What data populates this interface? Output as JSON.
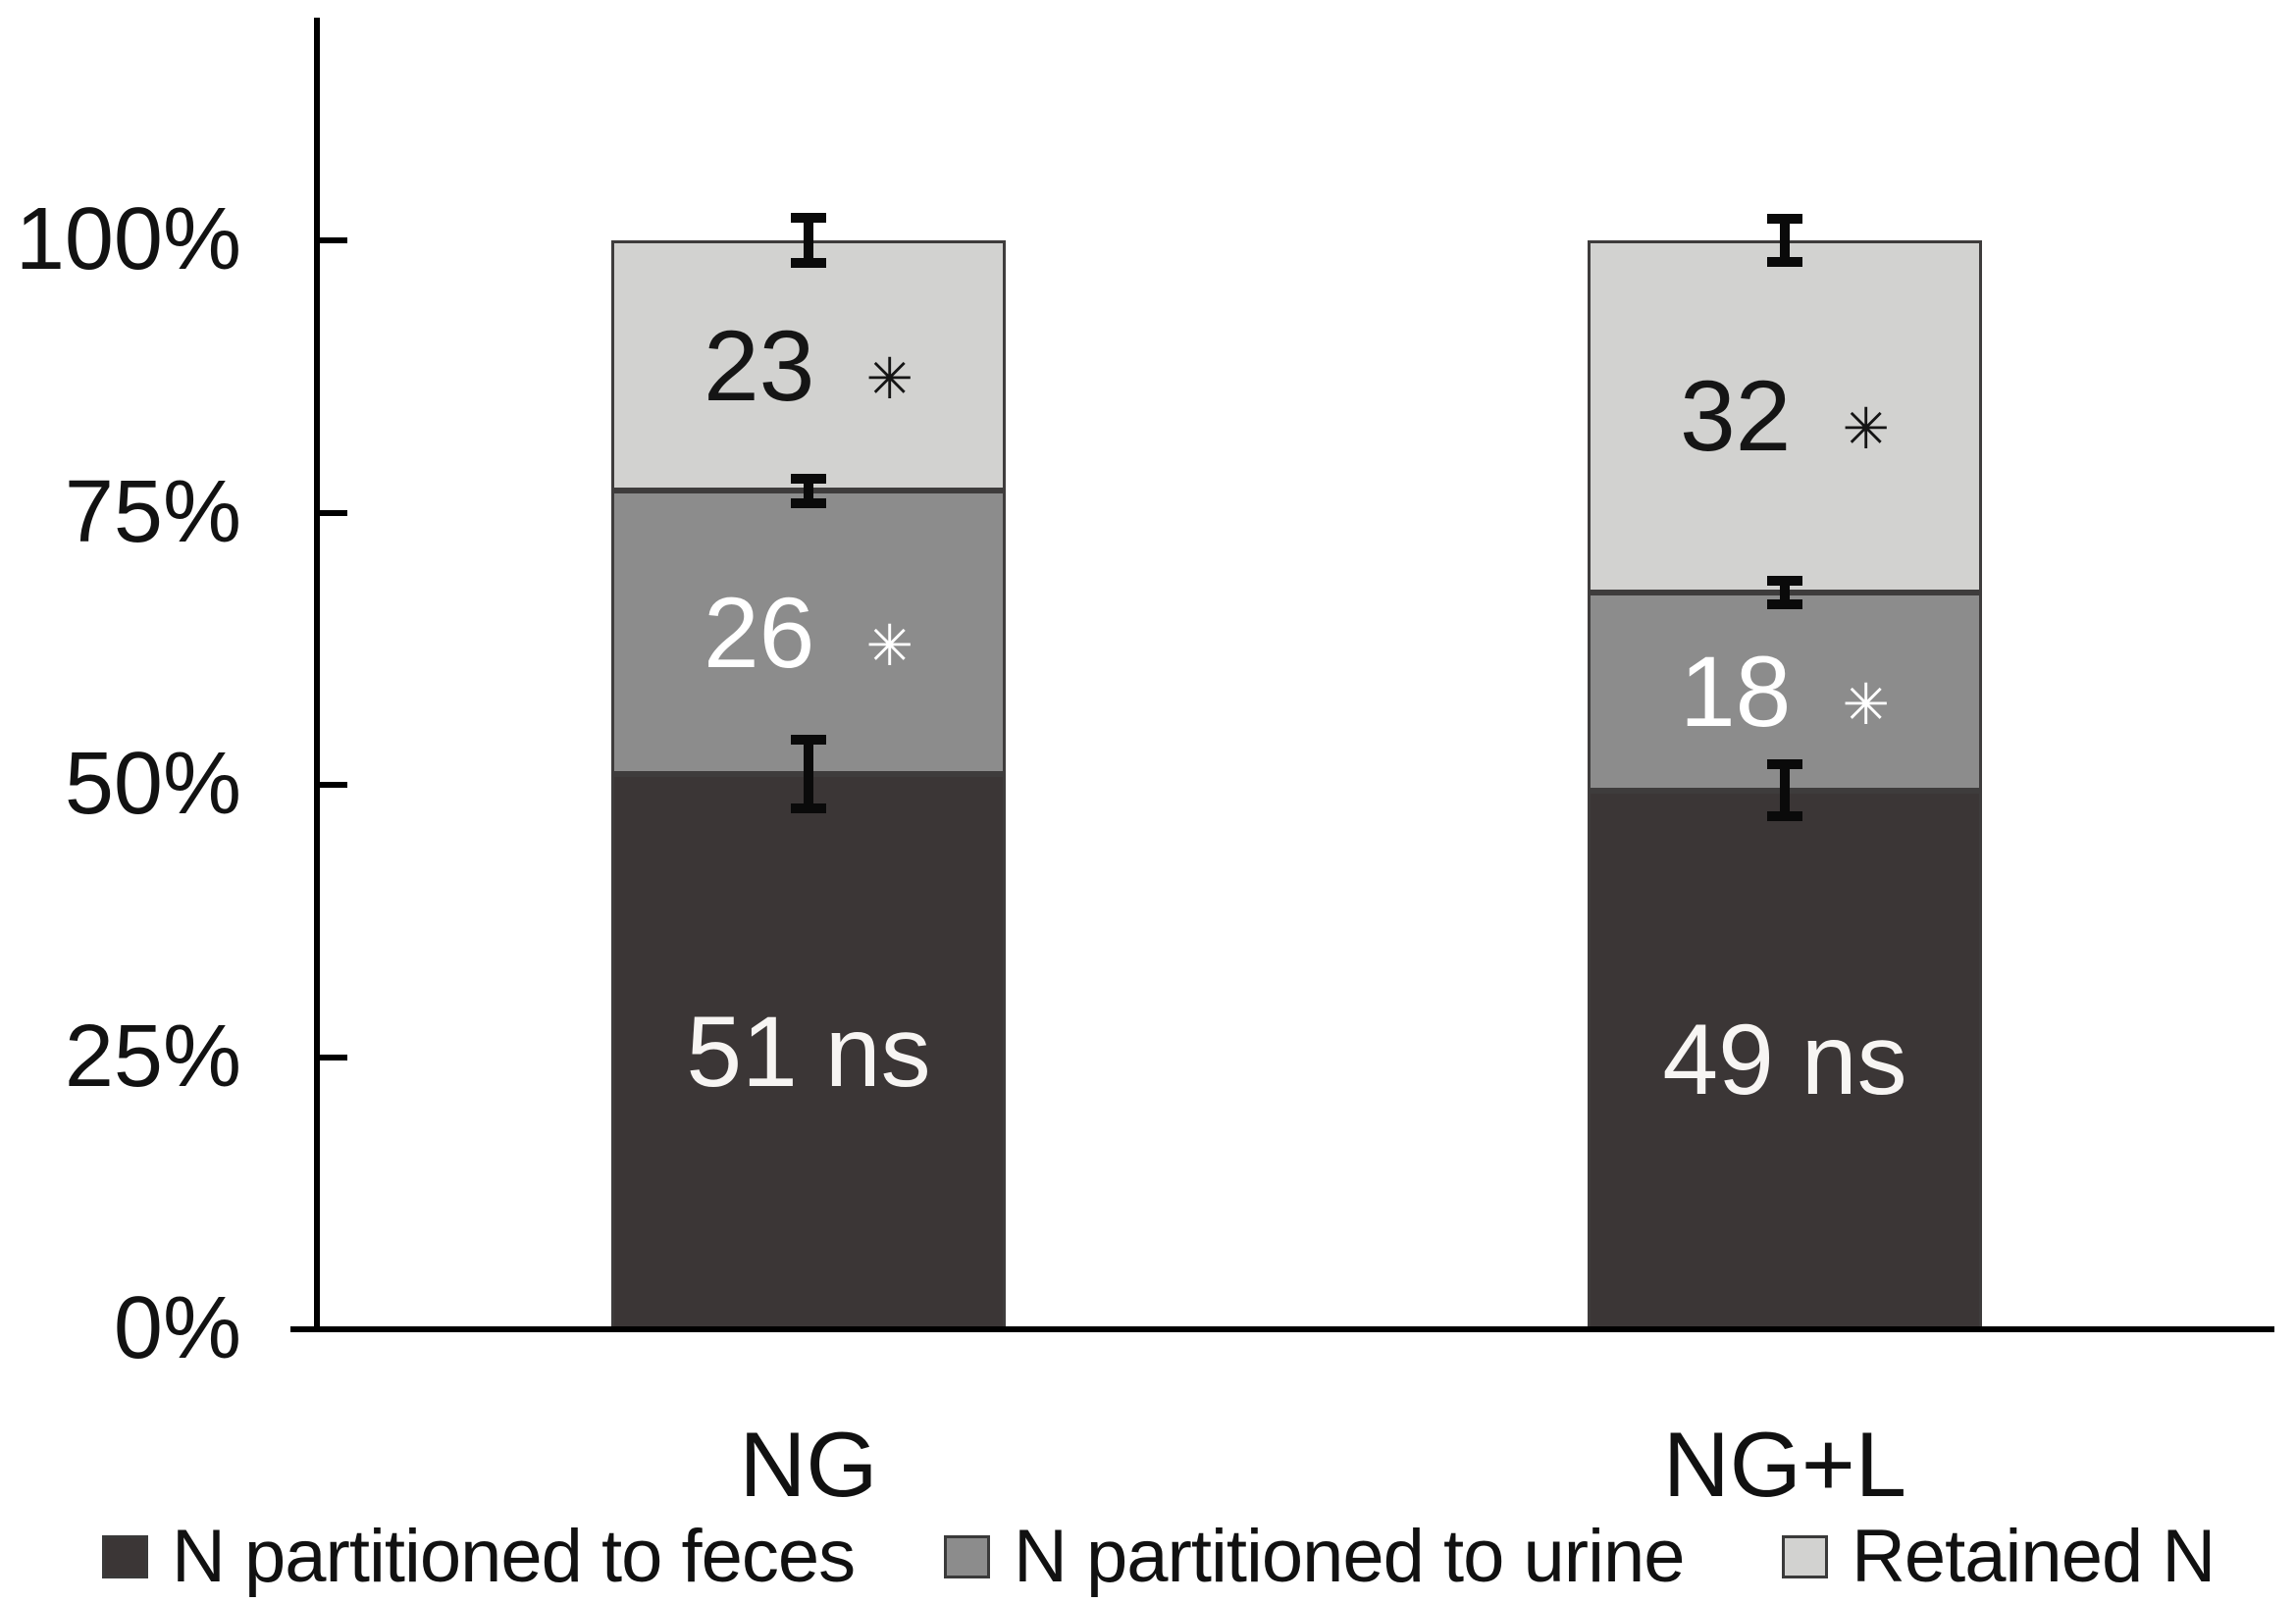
{
  "chart_data": {
    "type": "bar",
    "stacked": true,
    "percent_scale": true,
    "title": "",
    "xlabel": "",
    "ylabel": "",
    "categories": [
      "NG",
      "NG+L"
    ],
    "series": [
      {
        "name": "N partitioned to feces",
        "color": "#3b3636",
        "label_color": "#f7f5f3",
        "values": [
          51,
          49
        ],
        "annotations": [
          "ns",
          "ns"
        ],
        "annotation_style": "text"
      },
      {
        "name": "N partitioned to urine",
        "color": "#8c8c8c",
        "label_color": "#ffffff",
        "values": [
          26,
          18
        ],
        "annotations": [
          "✳",
          "✳"
        ],
        "annotation_style": "asterisk"
      },
      {
        "name": "Retained N",
        "color": "#d2d2d0",
        "label_color": "#151515",
        "values": [
          23,
          32
        ],
        "annotations": [
          "✳",
          "✳"
        ],
        "annotation_style": "asterisk"
      }
    ],
    "segment_labels": [
      [
        "51 ns",
        "49 ns"
      ],
      [
        "26 *",
        "18 *"
      ],
      [
        "23 *",
        "32 *"
      ]
    ],
    "y_axis": {
      "range": [
        0,
        100
      ],
      "ticks": [
        {
          "label": "100%",
          "value": 100
        },
        {
          "label": "75%",
          "value": 75
        },
        {
          "label": "50%",
          "value": 50
        },
        {
          "label": "25%",
          "value": 25
        },
        {
          "label": "0%",
          "value": 0
        }
      ]
    },
    "error_bars": [
      {
        "category_index": 0,
        "at_value": 100,
        "half": 2.5
      },
      {
        "category_index": 0,
        "at_value": 77,
        "half": 1.6
      },
      {
        "category_index": 0,
        "at_value": 51,
        "half": 3.6
      },
      {
        "category_index": 1,
        "at_value": 99,
        "half": 2.4
      },
      {
        "category_index": 1,
        "at_value": 67,
        "half": 1.5
      },
      {
        "category_index": 1,
        "at_value": 49,
        "half": 2.8
      }
    ],
    "legend": {
      "position": "bottom"
    },
    "grid": false
  }
}
